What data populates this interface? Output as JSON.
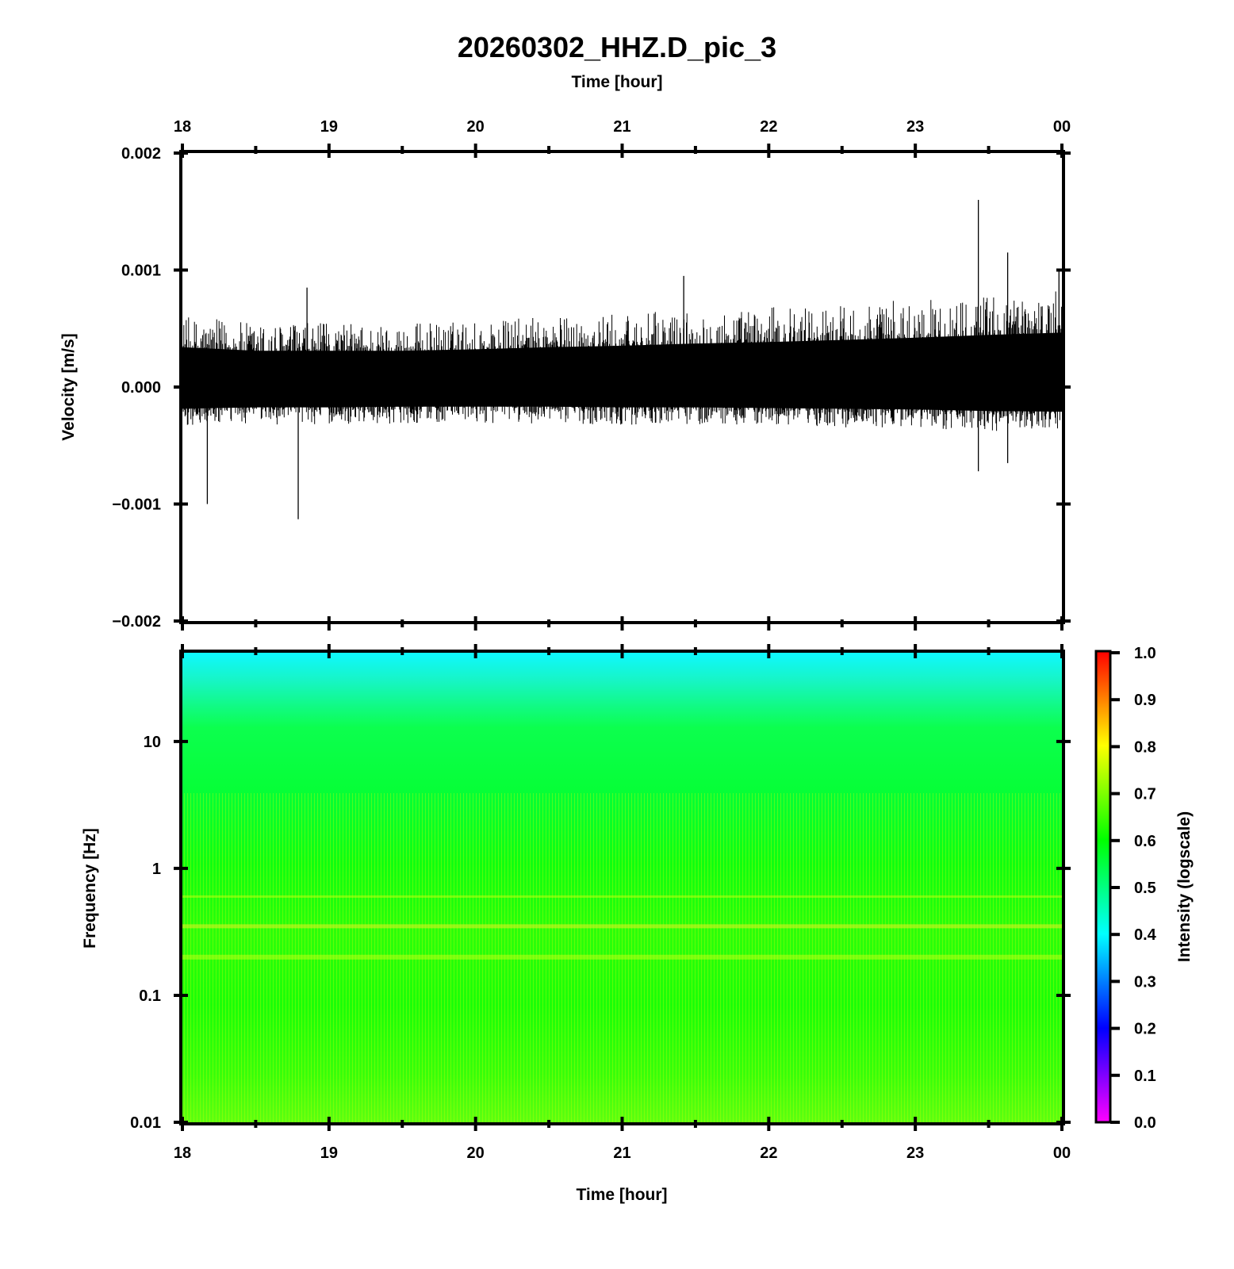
{
  "chart_data": [
    {
      "type": "line",
      "panel": "waveform",
      "title": "20260302_HHZ.D_pic_3",
      "xlabel": "Time [hour]",
      "ylabel": "Velocity [m/s]",
      "x_ticks": [
        "18",
        "19",
        "20",
        "21",
        "22",
        "23",
        "00"
      ],
      "y_ticks": [
        "0.002",
        "0.001",
        "0.000",
        "−0.001",
        "−0.002"
      ],
      "xlim": [
        18,
        24
      ],
      "ylim": [
        -0.002,
        0.002
      ],
      "series": [
        {
          "color": "#000000",
          "envelope_hours": [
            18.0,
            18.5,
            19.0,
            19.5,
            20.0,
            20.5,
            21.0,
            21.5,
            22.0,
            22.5,
            23.0,
            23.5,
            24.0
          ],
          "upper": [
            0.00055,
            0.0005,
            0.0005,
            0.0005,
            0.00052,
            0.00055,
            0.00057,
            0.0006,
            0.00062,
            0.00065,
            0.00068,
            0.00072,
            0.00075
          ],
          "lower": [
            -0.0003,
            -0.00028,
            -0.00028,
            -0.00027,
            -0.00027,
            -0.00027,
            -0.00028,
            -0.00028,
            -0.00029,
            -0.0003,
            -0.00031,
            -0.00033,
            -0.00034
          ],
          "spikes": [
            {
              "x": 18.17,
              "y": -0.001
            },
            {
              "x": 18.79,
              "y": -0.00113
            },
            {
              "x": 18.85,
              "y": 0.00085
            },
            {
              "x": 21.42,
              "y": 0.00095
            },
            {
              "x": 23.43,
              "y": 0.0016
            },
            {
              "x": 23.43,
              "y": -0.00072
            },
            {
              "x": 23.63,
              "y": 0.00115
            },
            {
              "x": 23.63,
              "y": -0.00065
            },
            {
              "x": 23.98,
              "y": 0.001
            }
          ]
        }
      ],
      "grid": false
    },
    {
      "type": "heatmap",
      "panel": "spectrogram",
      "xlabel": "Time [hour]",
      "ylabel": "Frequency [Hz]",
      "x_ticks": [
        "18",
        "19",
        "20",
        "21",
        "22",
        "23",
        "00"
      ],
      "y_ticks": [
        "10",
        "1",
        "0.1",
        "0.01"
      ],
      "xlim": [
        18,
        24
      ],
      "ylim": [
        0.01,
        50
      ],
      "y_scale": "log",
      "intensity_profile": {
        "frequency_hz": [
          50,
          30,
          15,
          8,
          3,
          1,
          0.6,
          0.35,
          0.2,
          0.1,
          0.05,
          0.02,
          0.01
        ],
        "intensity": [
          0.47,
          0.52,
          0.57,
          0.59,
          0.6,
          0.62,
          0.65,
          0.68,
          0.67,
          0.64,
          0.65,
          0.67,
          0.69
        ]
      },
      "colorbar": {
        "label": "Intensity (logscale)",
        "ticks": [
          "1.0",
          "0.9",
          "0.8",
          "0.7",
          "0.6",
          "0.5",
          "0.4",
          "0.3",
          "0.2",
          "0.1",
          "0.0"
        ],
        "range": [
          0.0,
          1.0
        ],
        "colors": [
          "#ff00ff",
          "#0000ff",
          "#00ffff",
          "#00ff00",
          "#ffff00",
          "#ff0000"
        ]
      }
    }
  ]
}
